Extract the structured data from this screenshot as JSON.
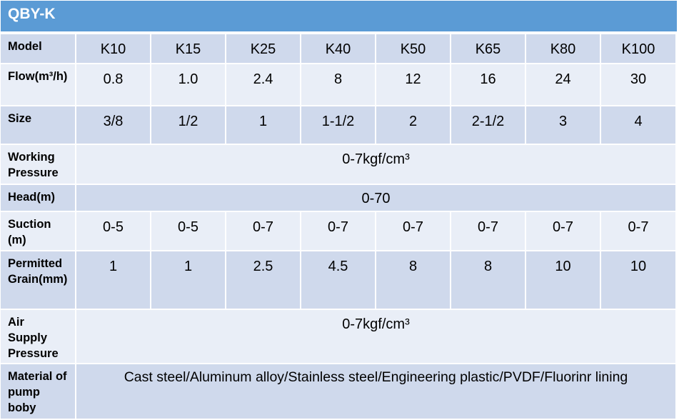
{
  "title": "QBY-K",
  "colors": {
    "header": "#5b9bd5",
    "row_dark": "#cfd9ec",
    "row_light": "#e9eef7"
  },
  "rows": [
    {
      "label": "Model",
      "values": [
        "K10",
        "K15",
        "K25",
        "K40",
        "K50",
        "K65",
        "K80",
        "K100"
      ]
    },
    {
      "label": "Flow(m³/h)",
      "values": [
        "0.8",
        "1.0",
        "2.4",
        "8",
        "12",
        "16",
        "24",
        "30"
      ]
    },
    {
      "label": "Size",
      "values": [
        "3/8",
        "1/2",
        "1",
        "1-1/2",
        "2",
        "2-1/2",
        "3",
        "4"
      ]
    },
    {
      "label": "Working Pressure",
      "span_value": "0-7kgf/cm³"
    },
    {
      "label": "Head(m)",
      "span_value": "0-70"
    },
    {
      "label": "Suction (m)",
      "values": [
        "0-5",
        "0-5",
        "0-7",
        "0-7",
        "0-7",
        "0-7",
        "0-7",
        "0-7"
      ]
    },
    {
      "label": "Permitted Grain(mm)",
      "values": [
        "1",
        "1",
        "2.5",
        "4.5",
        "8",
        "8",
        "10",
        "10"
      ]
    },
    {
      "label": "Air Supply Pressure",
      "span_value": "0-7kgf/cm³"
    },
    {
      "label": "Material of pump boby",
      "span_value": "Cast steel/Aluminum alloy/Stainless steel/Engineering plastic/PVDF/Fluorinr lining"
    }
  ]
}
